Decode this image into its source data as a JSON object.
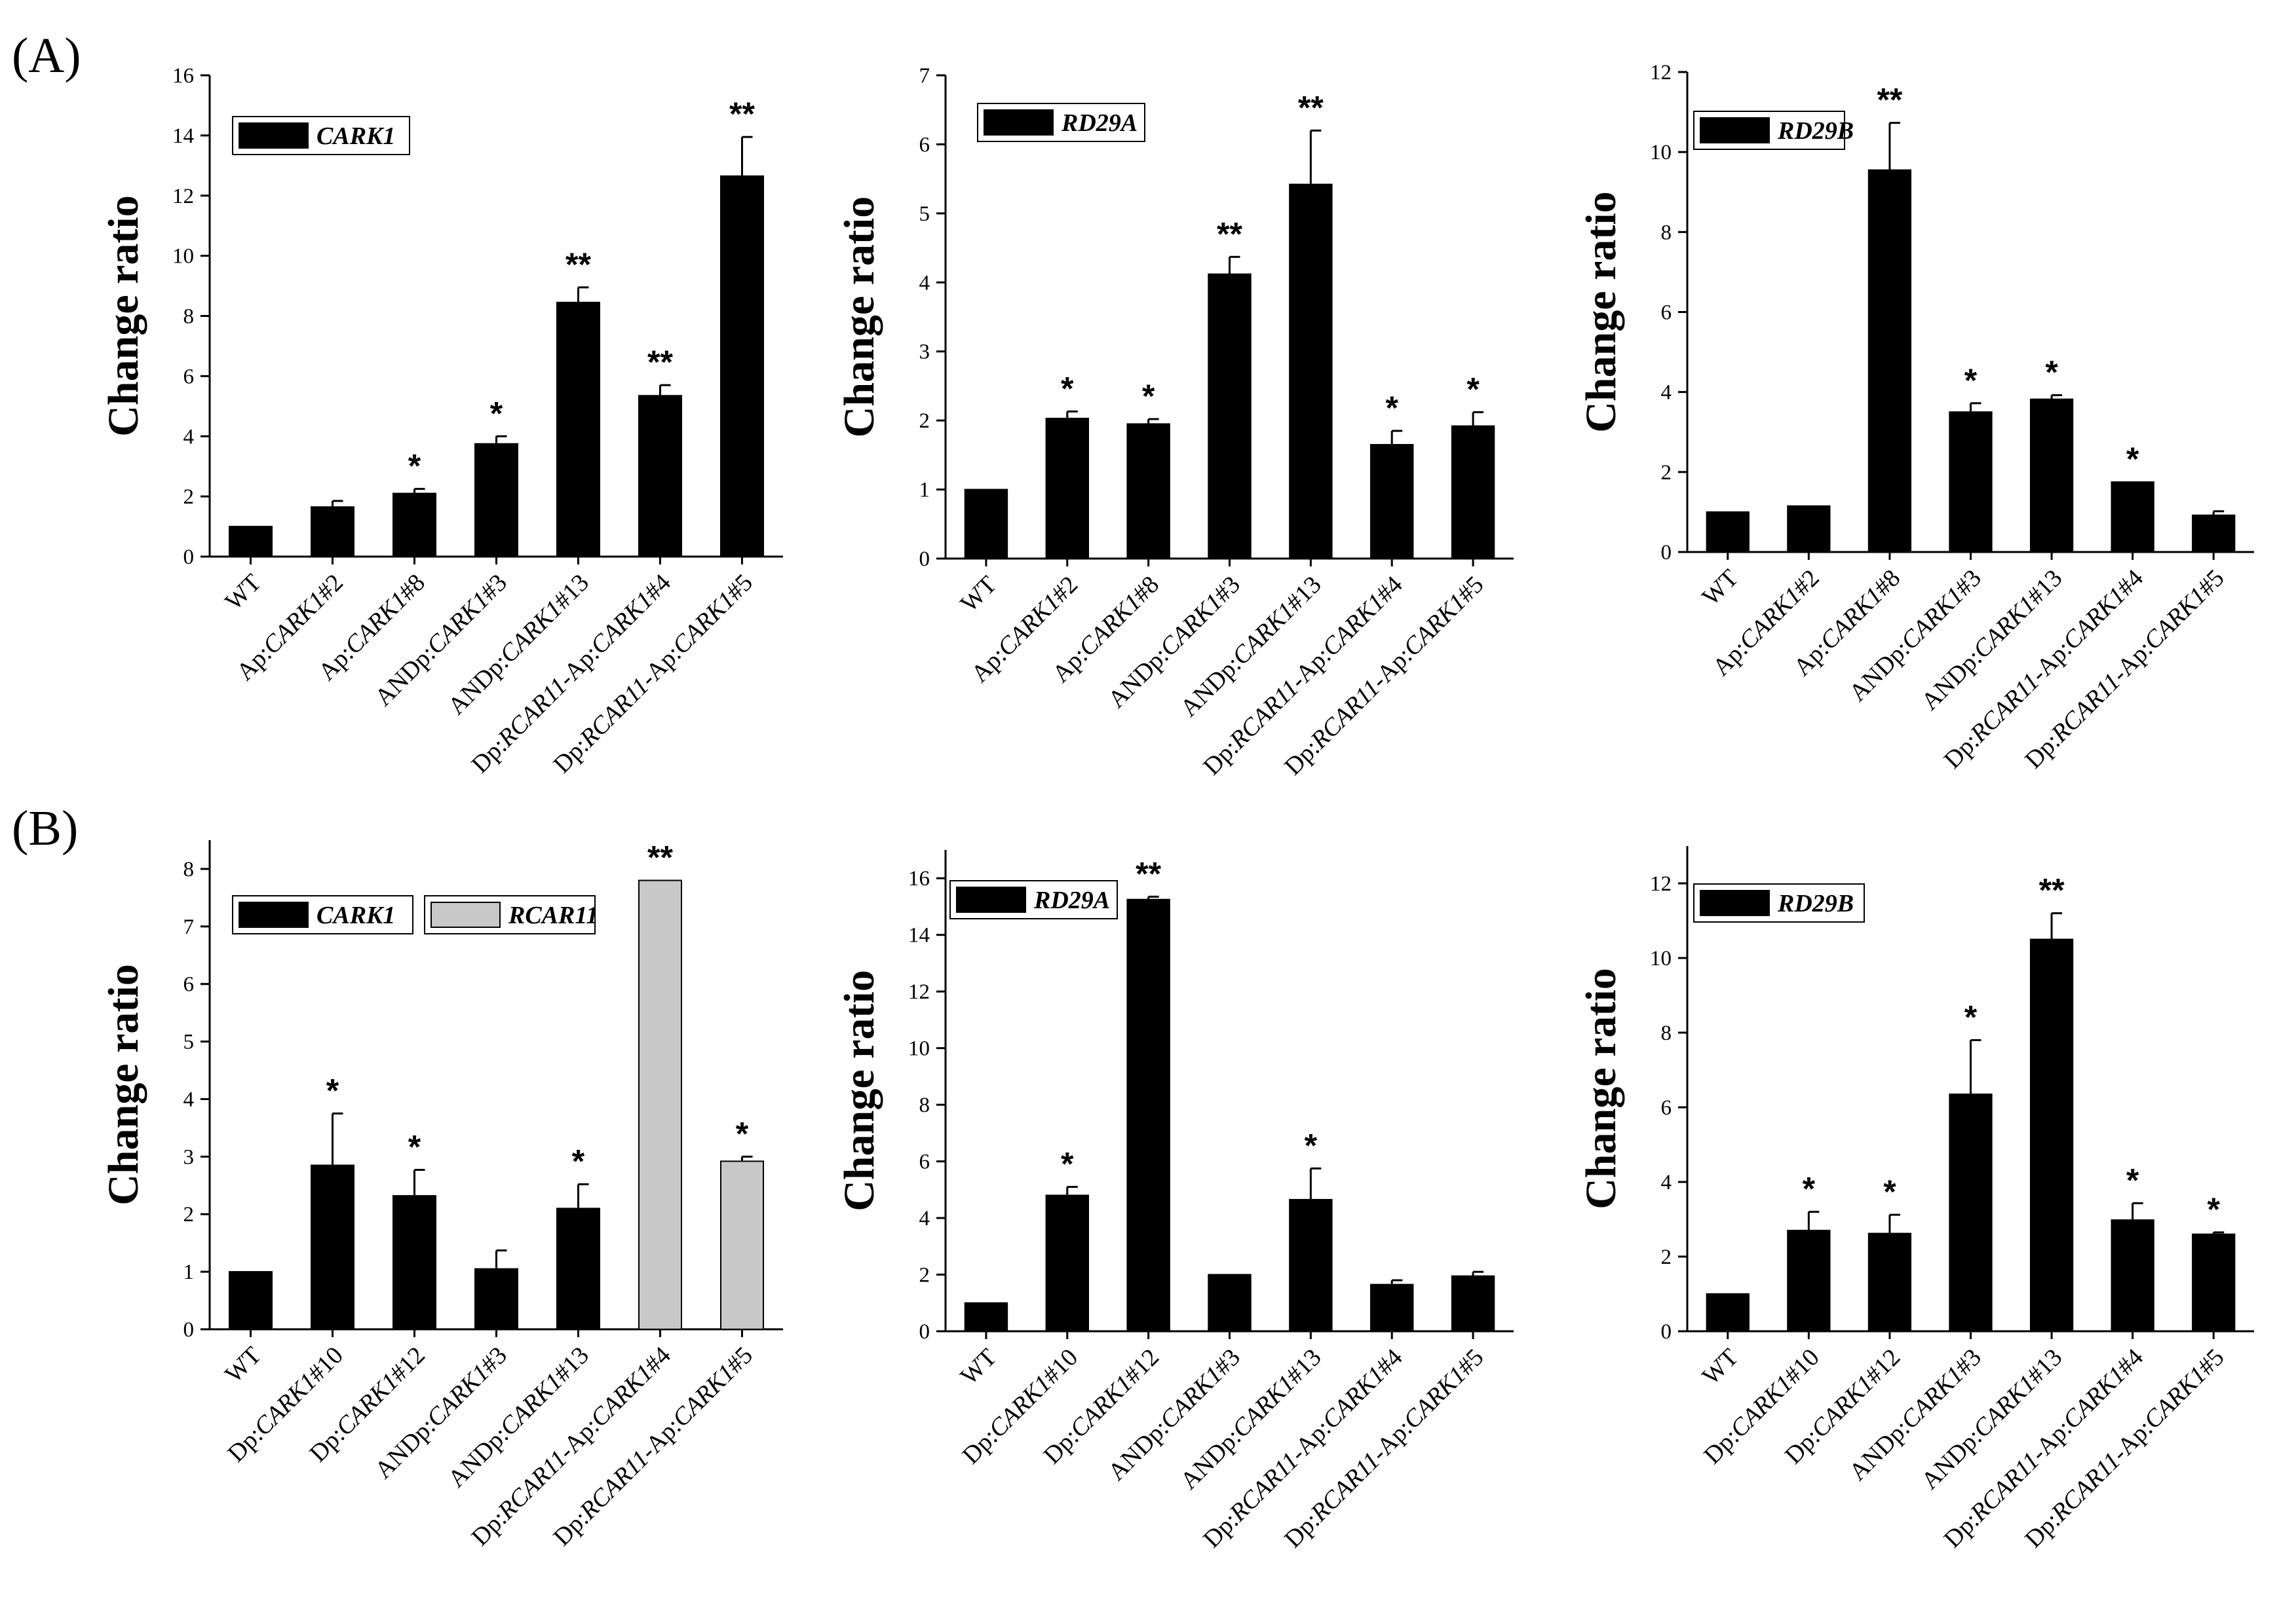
{
  "panel_labels": [
    "(A)",
    "(B)"
  ],
  "colors": {
    "bar_black": "#000000",
    "bar_gray": "#c8c8c8",
    "axis": "#000000",
    "background": "#ffffff"
  },
  "chart_data": [
    {
      "id": "a1",
      "panel": "A",
      "type": "bar",
      "title": "",
      "xlabel": "",
      "ylabel": "Change ratio",
      "ylim": [
        0,
        16
      ],
      "yticks": [
        0,
        2,
        4,
        6,
        8,
        10,
        12,
        14,
        16
      ],
      "categories": [
        "WT",
        "Ap:CARK1#2",
        "Ap:CARK1#8",
        "ANDp:CARK1#3",
        "ANDp:CARK1#13",
        "Dp:RCAR11-Ap:CARK1#4",
        "Dp:RCAR11-Ap:CARK1#5"
      ],
      "category_labels": [
        {
          "prefix": "WT",
          "gene": "",
          "suffix": ""
        },
        {
          "prefix": "Ap:",
          "gene": "CARK1",
          "suffix": "#2"
        },
        {
          "prefix": "Ap:",
          "gene": "CARK1",
          "suffix": "#8"
        },
        {
          "prefix": "ANDp:",
          "gene": "CARK1",
          "suffix": "#3"
        },
        {
          "prefix": "ANDp:",
          "gene": "CARK1",
          "suffix": "#13"
        },
        {
          "prefix": "Dp:",
          "gene": "RCAR11",
          "mid": "-Ap:",
          "gene2": "CARK1",
          "suffix": "#4"
        },
        {
          "prefix": "Dp:",
          "gene": "RCAR11",
          "mid": "-Ap:",
          "gene2": "CARK1",
          "suffix": "#5"
        }
      ],
      "series": [
        {
          "name": "CARK1",
          "values": [
            1.0,
            1.65,
            2.1,
            3.75,
            8.45,
            5.35,
            12.65
          ],
          "errors": [
            0,
            0.2,
            0.15,
            0.25,
            0.5,
            0.35,
            1.3
          ]
        }
      ],
      "significance": [
        "",
        "",
        "*",
        "*",
        "**",
        "**",
        "**"
      ],
      "legend": [
        {
          "label": "CARK1",
          "color": "#000000"
        }
      ]
    },
    {
      "id": "a2",
      "panel": "A",
      "type": "bar",
      "title": "",
      "xlabel": "",
      "ylabel": "Change ratio",
      "ylim": [
        0,
        7
      ],
      "yticks": [
        0,
        1,
        2,
        3,
        4,
        5,
        6,
        7
      ],
      "categories": [
        "WT",
        "Ap:CARK1#2",
        "Ap:CARK1#8",
        "ANDp:CARK1#3",
        "ANDp:CARK1#13",
        "Dp:RCAR11-Ap:CARK1#4",
        "Dp:RCAR11-Ap:CARK1#5"
      ],
      "category_labels": [
        {
          "prefix": "WT",
          "gene": "",
          "suffix": ""
        },
        {
          "prefix": "Ap:",
          "gene": "CARK1",
          "suffix": "#2"
        },
        {
          "prefix": "Ap:",
          "gene": "CARK1",
          "suffix": "#8"
        },
        {
          "prefix": "ANDp:",
          "gene": "CARK1",
          "suffix": "#3"
        },
        {
          "prefix": "ANDp:",
          "gene": "CARK1",
          "suffix": "#13"
        },
        {
          "prefix": "Dp:",
          "gene": "RCAR11",
          "mid": "-Ap:",
          "gene2": "CARK1",
          "suffix": "#4"
        },
        {
          "prefix": "Dp:",
          "gene": "RCAR11",
          "mid": "-Ap:",
          "gene2": "CARK1",
          "suffix": "#5"
        }
      ],
      "series": [
        {
          "name": "RD29A",
          "values": [
            1.0,
            2.03,
            1.95,
            4.12,
            5.42,
            1.65,
            1.92
          ],
          "errors": [
            0,
            0.1,
            0.07,
            0.25,
            0.78,
            0.2,
            0.2
          ]
        }
      ],
      "significance": [
        "",
        "*",
        "*",
        "**",
        "**",
        "*",
        "*"
      ],
      "legend": [
        {
          "label": "RD29A",
          "color": "#000000"
        }
      ]
    },
    {
      "id": "a3",
      "panel": "A",
      "type": "bar",
      "title": "",
      "xlabel": "",
      "ylabel": "Change ratio",
      "ylim": [
        0,
        12
      ],
      "yticks": [
        0,
        2,
        4,
        6,
        8,
        10,
        12
      ],
      "categories": [
        "WT",
        "Ap:CARK1#2",
        "Ap:CARK1#8",
        "ANDp:CARK1#3",
        "ANDp:CARK1#13",
        "Dp:RCAR11-Ap:CARK1#4",
        "Dp:RCAR11-Ap:CARK1#5"
      ],
      "category_labels": [
        {
          "prefix": "WT",
          "gene": "",
          "suffix": ""
        },
        {
          "prefix": "Ap:",
          "gene": "CARK1",
          "suffix": "#2"
        },
        {
          "prefix": "Ap:",
          "gene": "CARK1",
          "suffix": "#8"
        },
        {
          "prefix": "ANDp:",
          "gene": "CARK1",
          "suffix": "#3"
        },
        {
          "prefix": "ANDp:",
          "gene": "CARK1",
          "suffix": "#13"
        },
        {
          "prefix": "Dp:",
          "gene": "RCAR11",
          "mid": "-Ap:",
          "gene2": "CARK1",
          "suffix": "#4"
        },
        {
          "prefix": "Dp:",
          "gene": "RCAR11",
          "mid": "-Ap:",
          "gene2": "CARK1",
          "suffix": "#5"
        }
      ],
      "series": [
        {
          "name": "RD29B",
          "values": [
            1.0,
            1.15,
            9.55,
            3.5,
            3.82,
            1.75,
            0.92
          ],
          "errors": [
            0,
            0,
            1.18,
            0.22,
            0.1,
            0,
            0.1
          ]
        }
      ],
      "significance": [
        "",
        "",
        "**",
        "*",
        "*",
        "*",
        ""
      ],
      "legend": [
        {
          "label": "RD29B",
          "color": "#000000"
        }
      ]
    },
    {
      "id": "b1",
      "panel": "B",
      "type": "bar",
      "title": "",
      "xlabel": "",
      "ylabel": "Change ratio",
      "ylim": [
        0,
        8.5
      ],
      "yticks": [
        0,
        1,
        2,
        3,
        4,
        5,
        6,
        7,
        8
      ],
      "categories": [
        "WT",
        "Dp:CARK1#10",
        "Dp:CARK1#12",
        "ANDp:CARK1#3",
        "ANDp:CARK1#13",
        "Dp:RCAR11-Ap:CARK1#4",
        "Dp:RCAR11-Ap:CARK1#5"
      ],
      "category_labels": [
        {
          "prefix": "WT",
          "gene": "",
          "suffix": ""
        },
        {
          "prefix": "Dp:",
          "gene": "CARK1",
          "suffix": "#10"
        },
        {
          "prefix": "Dp:",
          "gene": "CARK1",
          "suffix": "#12"
        },
        {
          "prefix": "ANDp:",
          "gene": "CARK1",
          "suffix": "#3"
        },
        {
          "prefix": "ANDp:",
          "gene": "CARK1",
          "suffix": "#13"
        },
        {
          "prefix": "Dp:",
          "gene": "RCAR11",
          "mid": "-Ap:",
          "gene2": "CARK1",
          "suffix": "#4"
        },
        {
          "prefix": "Dp:",
          "gene": "RCAR11",
          "mid": "-Ap:",
          "gene2": "CARK1",
          "suffix": "#5"
        }
      ],
      "series": [
        {
          "name": "CARK1 / RCAR11",
          "values": [
            1.0,
            2.85,
            2.32,
            1.05,
            2.1,
            7.8,
            2.92
          ],
          "errors": [
            0,
            0.9,
            0.45,
            0.32,
            0.42,
            0,
            0.08
          ]
        }
      ],
      "bar_colors": [
        "#000000",
        "#000000",
        "#000000",
        "#000000",
        "#000000",
        "#c8c8c8",
        "#c8c8c8"
      ],
      "significance": [
        "",
        "*",
        "*",
        "",
        "*",
        "**",
        "*"
      ],
      "legend": [
        {
          "label": "CARK1",
          "color": "#000000"
        },
        {
          "label": "RCAR11",
          "color": "#c8c8c8"
        }
      ]
    },
    {
      "id": "b2",
      "panel": "B",
      "type": "bar",
      "title": "",
      "xlabel": "",
      "ylabel": "Change ratio",
      "ylim": [
        0,
        17
      ],
      "yticks": [
        0,
        2,
        4,
        6,
        8,
        10,
        12,
        14,
        16
      ],
      "categories": [
        "WT",
        "Dp:CARK1#10",
        "Dp:CARK1#12",
        "ANDp:CARK1#3",
        "ANDp:CARK1#13",
        "Dp:RCAR11-Ap:CARK1#4",
        "Dp:RCAR11-Ap:CARK1#5"
      ],
      "category_labels": [
        {
          "prefix": "WT",
          "gene": "",
          "suffix": ""
        },
        {
          "prefix": "Dp:",
          "gene": "CARK1",
          "suffix": "#10"
        },
        {
          "prefix": "Dp:",
          "gene": "CARK1",
          "suffix": "#12"
        },
        {
          "prefix": "ANDp:",
          "gene": "CARK1",
          "suffix": "#3"
        },
        {
          "prefix": "ANDp:",
          "gene": "CARK1",
          "suffix": "#13"
        },
        {
          "prefix": "Dp:",
          "gene": "RCAR11",
          "mid": "-Ap:",
          "gene2": "CARK1",
          "suffix": "#4"
        },
        {
          "prefix": "Dp:",
          "gene": "RCAR11",
          "mid": "-Ap:",
          "gene2": "CARK1",
          "suffix": "#5"
        }
      ],
      "series": [
        {
          "name": "RD29A",
          "values": [
            1.0,
            4.8,
            15.25,
            2.0,
            4.65,
            1.65,
            1.95
          ],
          "errors": [
            0,
            0.3,
            0.1,
            0,
            1.1,
            0.15,
            0.15
          ]
        }
      ],
      "significance": [
        "",
        "*",
        "**",
        "",
        "*",
        "",
        ""
      ],
      "legend": [
        {
          "label": "RD29A",
          "color": "#000000"
        }
      ]
    },
    {
      "id": "b3",
      "panel": "B",
      "type": "bar",
      "title": "",
      "xlabel": "",
      "ylabel": "Change ratio",
      "ylim": [
        0,
        13
      ],
      "yticks": [
        0,
        2,
        4,
        6,
        8,
        10,
        12
      ],
      "categories": [
        "WT",
        "Dp:CARK1#10",
        "Dp:CARK1#12",
        "ANDp:CARK1#3",
        "ANDp:CARK1#13",
        "Dp:RCAR11-Ap:CARK1#4",
        "Dp:RCAR11-Ap:CARK1#5"
      ],
      "category_labels": [
        {
          "prefix": "WT",
          "gene": "",
          "suffix": ""
        },
        {
          "prefix": "Dp:",
          "gene": "CARK1",
          "suffix": "#10"
        },
        {
          "prefix": "Dp:",
          "gene": "CARK1",
          "suffix": "#12"
        },
        {
          "prefix": "ANDp:",
          "gene": "CARK1",
          "suffix": "#3"
        },
        {
          "prefix": "ANDp:",
          "gene": "CARK1",
          "suffix": "#13"
        },
        {
          "prefix": "Dp:",
          "gene": "RCAR11",
          "mid": "-Ap:",
          "gene2": "CARK1",
          "suffix": "#4"
        },
        {
          "prefix": "Dp:",
          "gene": "RCAR11",
          "mid": "-Ap:",
          "gene2": "CARK1",
          "suffix": "#5"
        }
      ],
      "series": [
        {
          "name": "RD29B",
          "values": [
            1.0,
            2.7,
            2.62,
            6.35,
            10.5,
            2.98,
            2.6
          ],
          "errors": [
            0,
            0.5,
            0.5,
            1.45,
            0.7,
            0.45,
            0.05
          ]
        }
      ],
      "significance": [
        "",
        "*",
        "*",
        "*",
        "**",
        "*",
        "*"
      ],
      "legend": [
        {
          "label": "RD29B",
          "color": "#000000"
        }
      ]
    }
  ]
}
